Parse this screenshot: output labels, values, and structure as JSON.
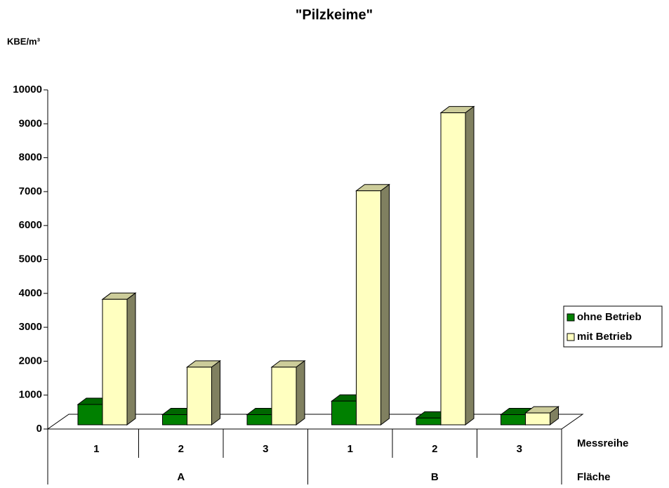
{
  "chart_data": {
    "type": "bar3d",
    "title": "\"Pilzkeime\"",
    "y_label": "KBE/m³",
    "categories": [
      "1",
      "2",
      "3",
      "1",
      "2",
      "3"
    ],
    "category_groups": [
      "A",
      "B"
    ],
    "x_label": "Messreihe",
    "group_label": "Fläche",
    "series": [
      {
        "name": "ohne Betrieb",
        "color": "#008000",
        "values": [
          600,
          300,
          300,
          700,
          200,
          300
        ]
      },
      {
        "name": "mit Betrieb",
        "color": "#ffffc0",
        "values": [
          3700,
          1700,
          1700,
          6900,
          9200,
          350
        ]
      }
    ],
    "ylim": [
      0,
      10000
    ],
    "yticks": [
      0,
      1000,
      2000,
      3000,
      4000,
      5000,
      6000,
      7000,
      8000,
      9000,
      10000
    ],
    "legend": "right"
  }
}
